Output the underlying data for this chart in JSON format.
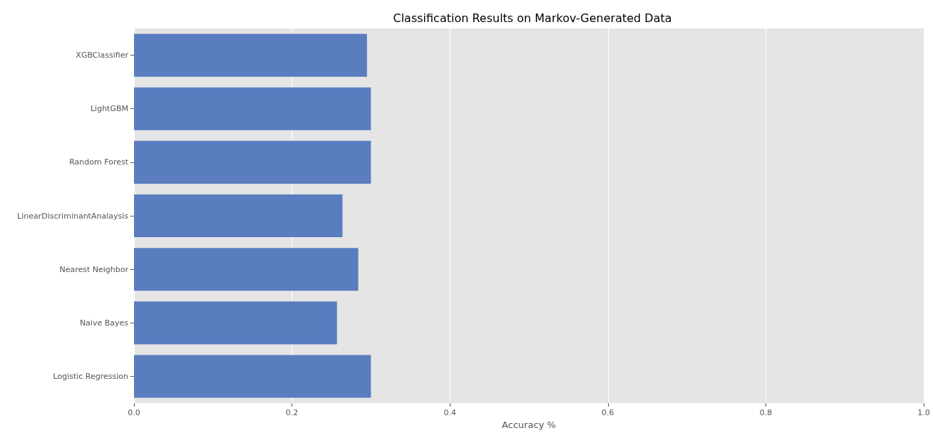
{
  "chart_data": {
    "type": "bar",
    "orientation": "horizontal",
    "title": "Classification Results on Markov-Generated Data",
    "xlabel": "Accuracy %",
    "categories": [
      "XGBClassifier",
      "LightGBM",
      "Random Forest",
      "LinearDiscriminantAnalaysis",
      "Nearest Neighbor",
      "Naive Bayes",
      "Logistic Regression"
    ],
    "values": [
      0.295,
      0.3,
      0.3,
      0.264,
      0.284,
      0.257,
      0.3
    ],
    "color": "#5a7dc0",
    "xlim": [
      0,
      1
    ],
    "xticks": [
      {
        "value": 0,
        "label": "0.0"
      },
      {
        "value": 0.2,
        "label": "0.2"
      },
      {
        "value": 0.4,
        "label": "0.4"
      },
      {
        "value": 0.6,
        "label": "0.6"
      },
      {
        "value": 0.8,
        "label": "0.8"
      },
      {
        "value": 1,
        "label": "1.0"
      }
    ],
    "grid": "x"
  }
}
